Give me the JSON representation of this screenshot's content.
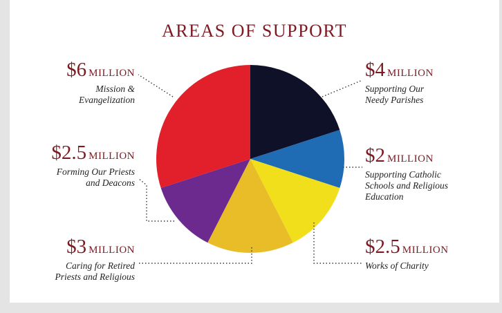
{
  "title": "AREAS OF SUPPORT",
  "chart_data": {
    "type": "pie",
    "title": "AREAS OF SUPPORT",
    "unit": "MILLION",
    "slices": [
      {
        "amount": "$4",
        "value": 4,
        "description": [
          "Supporting Our",
          "Needy Parishes"
        ],
        "color": "#0e1128"
      },
      {
        "amount": "$2",
        "value": 2,
        "description": [
          "Supporting Catholic",
          "Schools and Religious",
          "Education"
        ],
        "color": "#1f6cb4"
      },
      {
        "amount": "$2.5",
        "value": 2.5,
        "description": [
          "Works of Charity"
        ],
        "color": "#f0df1a"
      },
      {
        "amount": "$3",
        "value": 3,
        "description": [
          "Caring for Retired",
          "Priests and Religious"
        ],
        "color": "#e9bd28"
      },
      {
        "amount": "$2.5",
        "value": 2.5,
        "description": [
          "Forming Our Priests",
          "and Deacons"
        ],
        "color": "#6c2a8e"
      },
      {
        "amount": "$6",
        "value": 6,
        "description": [
          "Mission &",
          "Evangelization"
        ],
        "color": "#e2202c"
      }
    ]
  }
}
